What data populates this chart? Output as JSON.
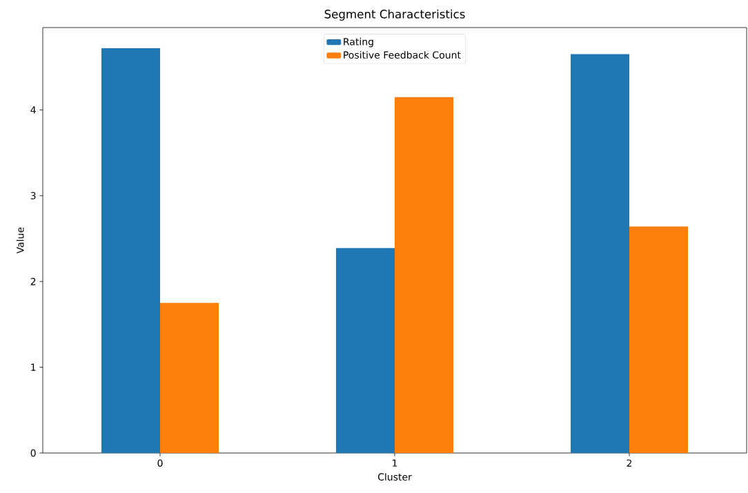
{
  "chart_data": {
    "type": "bar",
    "title": "Segment Characteristics",
    "xlabel": "Cluster",
    "ylabel": "Value",
    "categories": [
      "0",
      "1",
      "2"
    ],
    "series": [
      {
        "name": "Rating",
        "color": "#1f77b4",
        "values": [
          4.72,
          2.39,
          4.65
        ]
      },
      {
        "name": "Positive Feedback Count",
        "color": "#ff7f0e",
        "values": [
          1.75,
          4.15,
          2.64
        ]
      }
    ],
    "ylim": [
      0,
      4.96
    ],
    "yticks": [
      0,
      1,
      2,
      3,
      4
    ],
    "grid": false,
    "legend": "top"
  }
}
